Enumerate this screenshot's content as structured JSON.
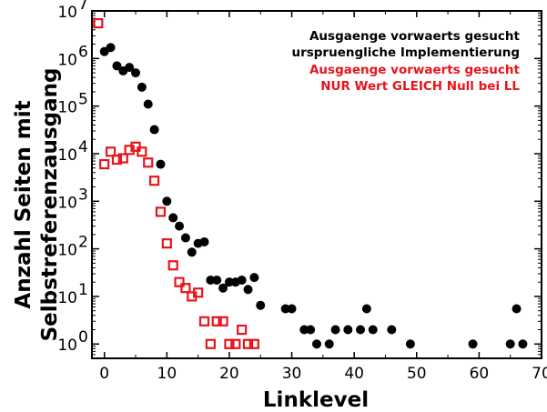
{
  "chart_data": {
    "type": "scatter",
    "xlabel": "Linklevel",
    "ylabel_lines": [
      "Anzahl Seiten mit",
      "Selbstreferenzausgang"
    ],
    "xlim": [
      -2,
      70
    ],
    "ylim": [
      0.5,
      10000000
    ],
    "yscale": "log",
    "xticks": [
      0,
      10,
      20,
      30,
      40,
      50,
      60,
      70
    ],
    "yticks": [
      {
        "value": 1,
        "base": "10",
        "exp": "0"
      },
      {
        "value": 10,
        "base": "10",
        "exp": "1"
      },
      {
        "value": 100,
        "base": "10",
        "exp": "2"
      },
      {
        "value": 1000,
        "base": "10",
        "exp": "3"
      },
      {
        "value": 10000,
        "base": "10",
        "exp": "4"
      },
      {
        "value": 100000,
        "base": "10",
        "exp": "5"
      },
      {
        "value": 1000000,
        "base": "10",
        "exp": "6"
      },
      {
        "value": 10000000,
        "base": "10",
        "exp": "7"
      }
    ],
    "legend_position": "top-right",
    "series": [
      {
        "name_lines": [
          "Ausgaenge vorwaerts gesucht",
          "urspruengliche Implementierung"
        ],
        "color": "#000000",
        "marker": "filled-circle",
        "points": [
          [
            0,
            1400000
          ],
          [
            1,
            1700000
          ],
          [
            2,
            700000
          ],
          [
            3,
            550000
          ],
          [
            4,
            650000
          ],
          [
            5,
            500000
          ],
          [
            6,
            250000
          ],
          [
            7,
            110000
          ],
          [
            8,
            32000
          ],
          [
            9,
            6000
          ],
          [
            10,
            1000
          ],
          [
            11,
            450
          ],
          [
            12,
            300
          ],
          [
            13,
            170
          ],
          [
            14,
            85
          ],
          [
            15,
            130
          ],
          [
            16,
            140
          ],
          [
            17,
            22
          ],
          [
            18,
            22
          ],
          [
            19,
            15
          ],
          [
            20,
            20
          ],
          [
            21,
            20
          ],
          [
            22,
            22
          ],
          [
            23,
            14
          ],
          [
            24,
            25
          ],
          [
            25,
            6.5
          ],
          [
            29,
            5.5
          ],
          [
            30,
            5.5
          ],
          [
            32,
            2
          ],
          [
            33,
            2
          ],
          [
            34,
            1
          ],
          [
            36,
            1
          ],
          [
            37,
            2
          ],
          [
            39,
            2
          ],
          [
            41,
            2
          ],
          [
            42,
            5.5
          ],
          [
            43,
            2
          ],
          [
            46,
            2
          ],
          [
            49,
            1
          ],
          [
            59,
            1
          ],
          [
            65,
            1
          ],
          [
            66,
            5.5
          ],
          [
            67,
            1
          ]
        ]
      },
      {
        "name_lines": [
          "Ausgaenge vorwaerts gesucht",
          "NUR Wert GLEICH Null bei LL"
        ],
        "color": "#e8141c",
        "marker": "open-square",
        "points": [
          [
            -1,
            5500000
          ],
          [
            0,
            6000
          ],
          [
            1,
            11000
          ],
          [
            2,
            7500
          ],
          [
            3,
            8000
          ],
          [
            4,
            12000
          ],
          [
            5,
            14000
          ],
          [
            6,
            11000
          ],
          [
            7,
            6500
          ],
          [
            8,
            2700
          ],
          [
            9,
            600
          ],
          [
            10,
            130
          ],
          [
            11,
            45
          ],
          [
            12,
            20
          ],
          [
            13,
            15
          ],
          [
            14,
            10
          ],
          [
            15,
            12
          ],
          [
            16,
            3
          ],
          [
            17,
            1
          ],
          [
            18,
            3
          ],
          [
            19,
            3
          ],
          [
            20,
            1
          ],
          [
            21,
            1
          ],
          [
            22,
            2
          ],
          [
            23,
            1
          ],
          [
            24,
            1
          ]
        ]
      }
    ]
  }
}
